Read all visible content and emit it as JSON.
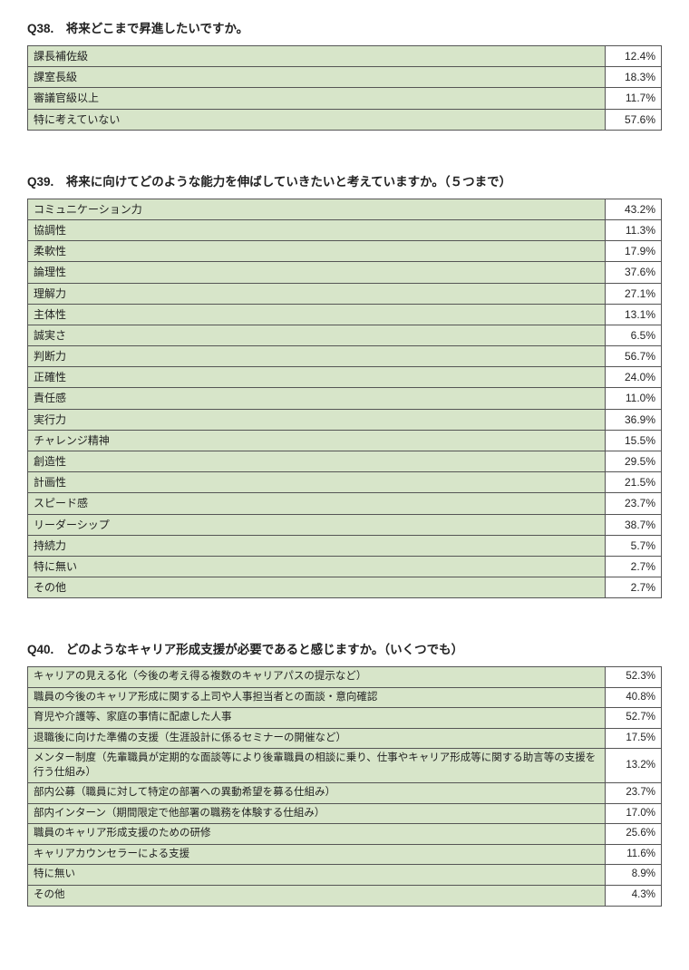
{
  "colors": {
    "row_bg": "#d7e5c9",
    "value_bg": "#ffffff",
    "border": "#555555",
    "text": "#222222"
  },
  "q38": {
    "title": "Q38.　将来どこまで昇進したいですか。",
    "rows": [
      {
        "label": "課長補佐級",
        "value": "12.4%"
      },
      {
        "label": "課室長級",
        "value": "18.3%"
      },
      {
        "label": "審議官級以上",
        "value": "11.7%"
      },
      {
        "label": "特に考えていない",
        "value": "57.6%"
      }
    ]
  },
  "q39": {
    "title": "Q39.　将来に向けてどのような能力を伸ばしていきたいと考えていますか。（５つまで）",
    "rows": [
      {
        "label": "コミュニケーション力",
        "value": "43.2%"
      },
      {
        "label": "協調性",
        "value": "11.3%"
      },
      {
        "label": "柔軟性",
        "value": "17.9%"
      },
      {
        "label": "論理性",
        "value": "37.6%"
      },
      {
        "label": "理解力",
        "value": "27.1%"
      },
      {
        "label": "主体性",
        "value": "13.1%"
      },
      {
        "label": "誠実さ",
        "value": "6.5%"
      },
      {
        "label": "判断力",
        "value": "56.7%"
      },
      {
        "label": "正確性",
        "value": "24.0%"
      },
      {
        "label": "責任感",
        "value": "11.0%"
      },
      {
        "label": "実行力",
        "value": "36.9%"
      },
      {
        "label": "チャレンジ精神",
        "value": "15.5%"
      },
      {
        "label": "創造性",
        "value": "29.5%"
      },
      {
        "label": "計画性",
        "value": "21.5%"
      },
      {
        "label": "スピード感",
        "value": "23.7%"
      },
      {
        "label": "リーダーシップ",
        "value": "38.7%"
      },
      {
        "label": "持続力",
        "value": "5.7%"
      },
      {
        "label": "特に無い",
        "value": "2.7%"
      },
      {
        "label": "その他",
        "value": "2.7%"
      }
    ]
  },
  "q40": {
    "title": "Q40.　どのようなキャリア形成支援が必要であると感じますか。（いくつでも）",
    "rows": [
      {
        "label": "キャリアの見える化（今後の考え得る複数のキャリアパスの提示など）",
        "value": "52.3%"
      },
      {
        "label": "職員の今後のキャリア形成に関する上司や人事担当者との面談・意向確認",
        "value": "40.8%"
      },
      {
        "label": "育児や介護等、家庭の事情に配慮した人事",
        "value": "52.7%"
      },
      {
        "label": "退職後に向けた準備の支援（生涯設計に係るセミナーの開催など）",
        "value": "17.5%"
      },
      {
        "label": "メンター制度（先輩職員が定期的な面談等により後輩職員の相談に乗り、仕事やキャリア形成等に関する助言等の支援を行う仕組み）",
        "value": "13.2%"
      },
      {
        "label": "部内公募（職員に対して特定の部署への異動希望を募る仕組み）",
        "value": "23.7%"
      },
      {
        "label": "部内インターン（期間限定で他部署の職務を体験する仕組み）",
        "value": "17.0%"
      },
      {
        "label": "職員のキャリア形成支援のための研修",
        "value": "25.6%"
      },
      {
        "label": "キャリアカウンセラーによる支援",
        "value": "11.6%"
      },
      {
        "label": "特に無い",
        "value": "8.9%"
      },
      {
        "label": "その他",
        "value": "4.3%"
      }
    ]
  }
}
